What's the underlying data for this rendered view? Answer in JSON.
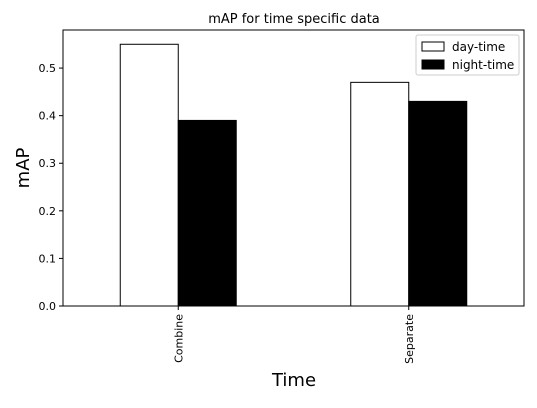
{
  "chart_data": {
    "type": "bar",
    "title": "mAP for time specific data",
    "xlabel": "Time",
    "ylabel": "mAP",
    "categories": [
      "Combine",
      "Separate"
    ],
    "series": [
      {
        "name": "day-time",
        "values": [
          0.55,
          0.47
        ],
        "color": "#ffffff"
      },
      {
        "name": "night-time",
        "values": [
          0.39,
          0.43
        ],
        "color": "#000000"
      }
    ],
    "ylim": [
      0,
      0.58
    ],
    "yticks": [
      "0.0",
      "0.1",
      "0.2",
      "0.3",
      "0.4",
      "0.5"
    ],
    "grid": false,
    "legend_position": "top-right"
  }
}
